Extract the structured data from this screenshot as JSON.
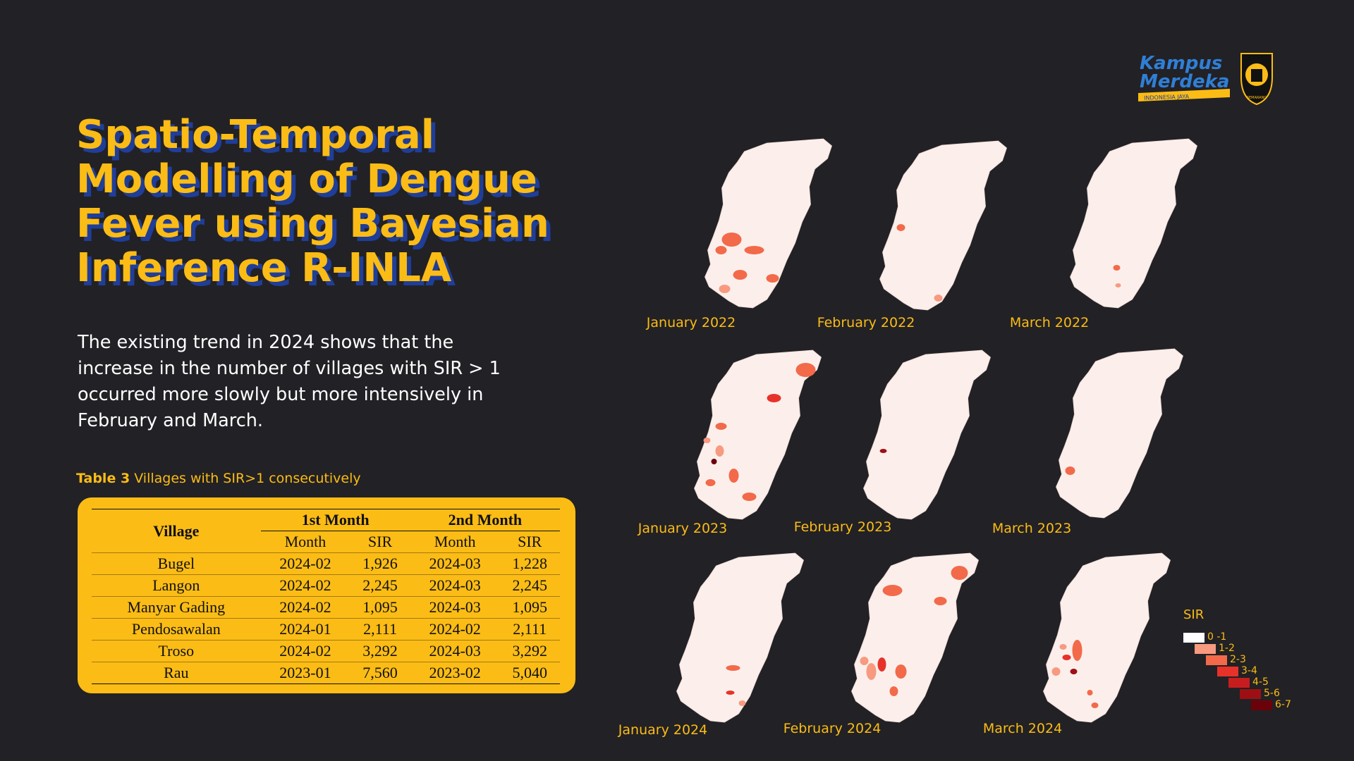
{
  "title": "Spatio-Temporal\nModelling of Dengue\nFever using Bayesian\nInference R-INLA",
  "description": "The existing trend in 2024 shows that the increase in the number of villages with SIR > 1 occurred more slowly but more intensively in February and March.",
  "caption": {
    "label": "Table 3",
    "text": " Villages with SIR>1 consecutively"
  },
  "table": {
    "village_header": "Village",
    "group1": "1st Month",
    "group2": "2nd Month",
    "sub_month": "Month",
    "sub_sir": "SIR",
    "rows": [
      [
        "Bugel",
        "2024-02",
        "1,926",
        "2024-03",
        "1,228"
      ],
      [
        "Langon",
        "2024-02",
        "2,245",
        "2024-03",
        "2,245"
      ],
      [
        "Manyar Gading",
        "2024-02",
        "1,095",
        "2024-03",
        "1,095"
      ],
      [
        "Pendosawalan",
        "2024-01",
        "2,111",
        "2024-02",
        "2,111"
      ],
      [
        "Troso",
        "2024-02",
        "3,292",
        "2024-03",
        "3,292"
      ],
      [
        "Rau",
        "2023-01",
        "7,560",
        "2023-02",
        "5,040"
      ]
    ]
  },
  "logo": {
    "line1": "Kampus",
    "line2": "Merdeka",
    "tagline": "INDONESIA JAYA",
    "seal_text": "SEMARANG"
  },
  "maps": [
    {
      "label": "January 2022"
    },
    {
      "label": "February 2022"
    },
    {
      "label": "March 2022"
    },
    {
      "label": "January 2023"
    },
    {
      "label": "February 2023"
    },
    {
      "label": "March 2023"
    },
    {
      "label": "January 2024"
    },
    {
      "label": "February 2024"
    },
    {
      "label": "March 2024"
    }
  ],
  "legend": {
    "title": "SIR",
    "items": [
      {
        "label": "0 -1",
        "color": "#ffffff"
      },
      {
        "label": "1-2",
        "color": "#f79a80"
      },
      {
        "label": "2-3",
        "color": "#f26a4a"
      },
      {
        "label": "3-4",
        "color": "#e7322a"
      },
      {
        "label": "4-5",
        "color": "#c81d1e"
      },
      {
        "label": "5-6",
        "color": "#9e0f14"
      },
      {
        "label": "6-7",
        "color": "#6b020a"
      }
    ]
  },
  "colors": {
    "accent": "#fbbc16",
    "shadow": "#1f3e99",
    "background": "#222125",
    "map_fill": "#fcefeb"
  }
}
